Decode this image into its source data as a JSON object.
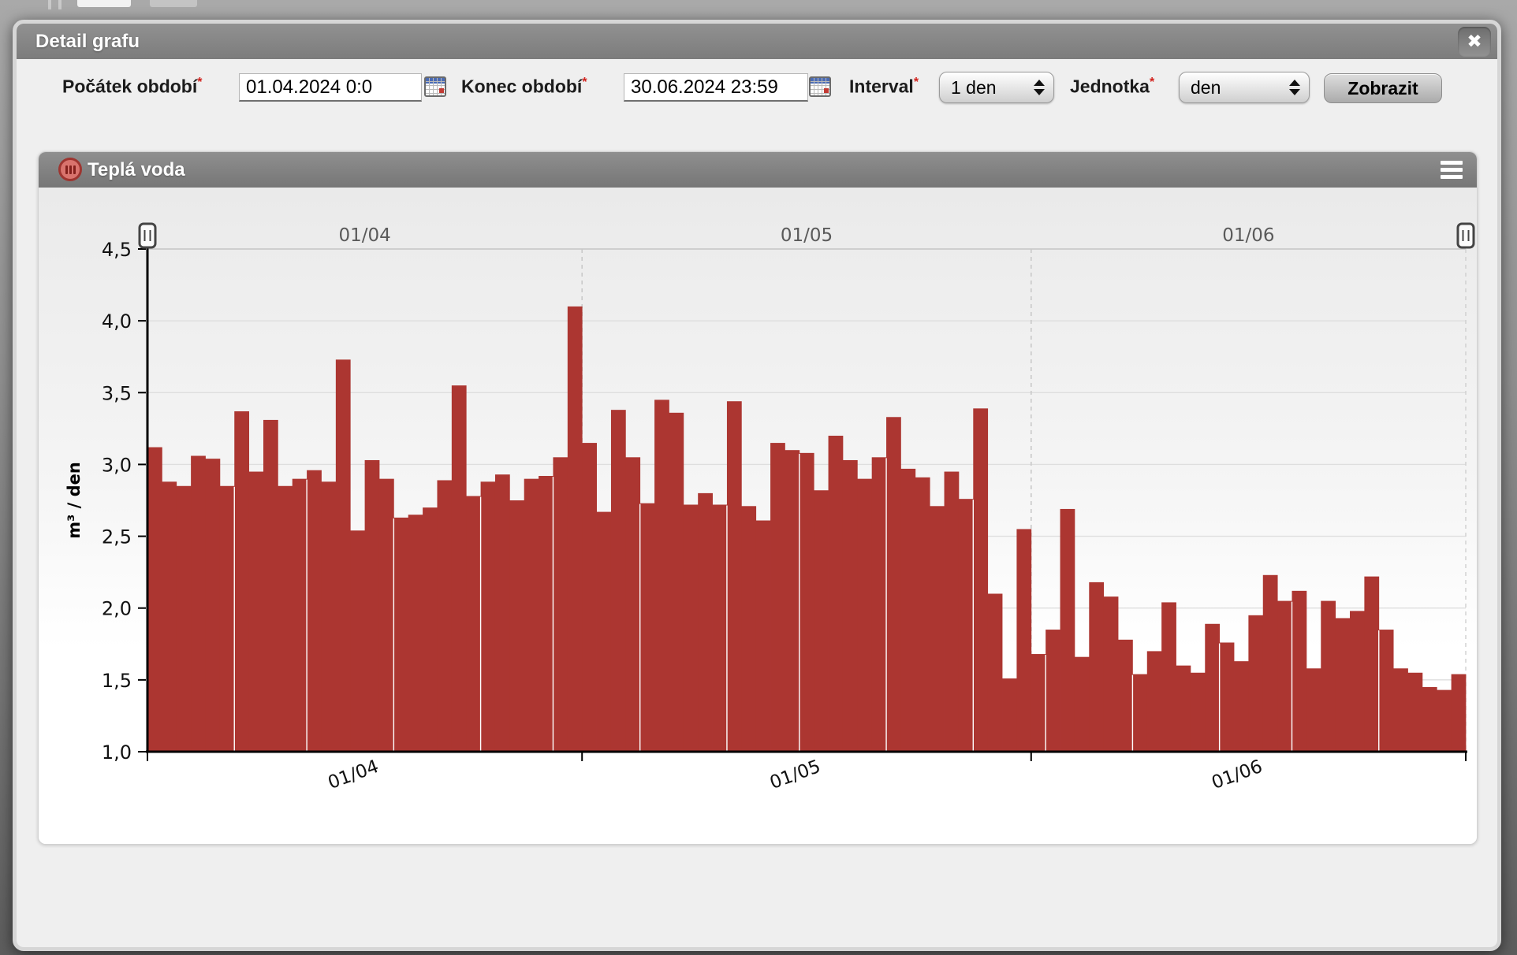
{
  "window": {
    "title": "Detail grafu",
    "close_glyph": "✖"
  },
  "form": {
    "required_marker": "*",
    "start_label": "Počátek období",
    "start_value": "01.04.2024 0:0",
    "end_label": "Konec období",
    "end_value": "30.06.2024 23:59",
    "interval_label": "Interval",
    "interval_value": "1 den",
    "unit_label": "Jednotka",
    "unit_value": "den",
    "submit_label": "Zobrazit"
  },
  "chart_panel": {
    "title": "Teplá voda"
  },
  "chart_data": {
    "type": "bar",
    "title": "Teplá voda",
    "xlabel": "",
    "ylabel": "m³ / den",
    "ylim": [
      1.0,
      4.5
    ],
    "ytick_step": 0.5,
    "ytick_labels": [
      "1,0",
      "1,5",
      "2,0",
      "2,5",
      "3,0",
      "3,5",
      "4,0",
      "4,5"
    ],
    "grid": true,
    "legend": "none",
    "bar_color": "#ac3631",
    "months": [
      {
        "label": "01/04",
        "days": 30
      },
      {
        "label": "01/05",
        "days": 31
      },
      {
        "label": "01/06",
        "days": 30
      }
    ],
    "values": [
      3.12,
      2.88,
      2.85,
      3.06,
      3.04,
      2.85,
      3.37,
      2.95,
      3.31,
      2.85,
      2.9,
      2.96,
      2.88,
      3.73,
      2.54,
      3.03,
      2.9,
      2.63,
      2.65,
      2.7,
      2.89,
      3.55,
      2.78,
      2.88,
      2.93,
      2.75,
      2.9,
      2.92,
      3.05,
      4.1,
      3.15,
      2.67,
      3.38,
      3.05,
      2.73,
      3.45,
      3.36,
      2.72,
      2.8,
      2.72,
      3.44,
      2.71,
      2.61,
      3.15,
      3.1,
      3.08,
      2.82,
      3.2,
      3.03,
      2.9,
      3.05,
      3.33,
      2.97,
      2.91,
      2.71,
      2.95,
      2.76,
      3.39,
      2.1,
      1.51,
      2.55,
      1.68,
      1.85,
      2.69,
      1.66,
      2.18,
      2.08,
      1.78,
      1.54,
      1.7,
      2.04,
      1.6,
      1.55,
      1.89,
      1.76,
      1.63,
      1.95,
      2.23,
      2.05,
      2.12,
      1.58,
      2.05,
      1.93,
      1.98,
      2.22,
      1.85,
      1.58,
      1.55,
      1.45,
      1.43,
      1.54
    ]
  }
}
